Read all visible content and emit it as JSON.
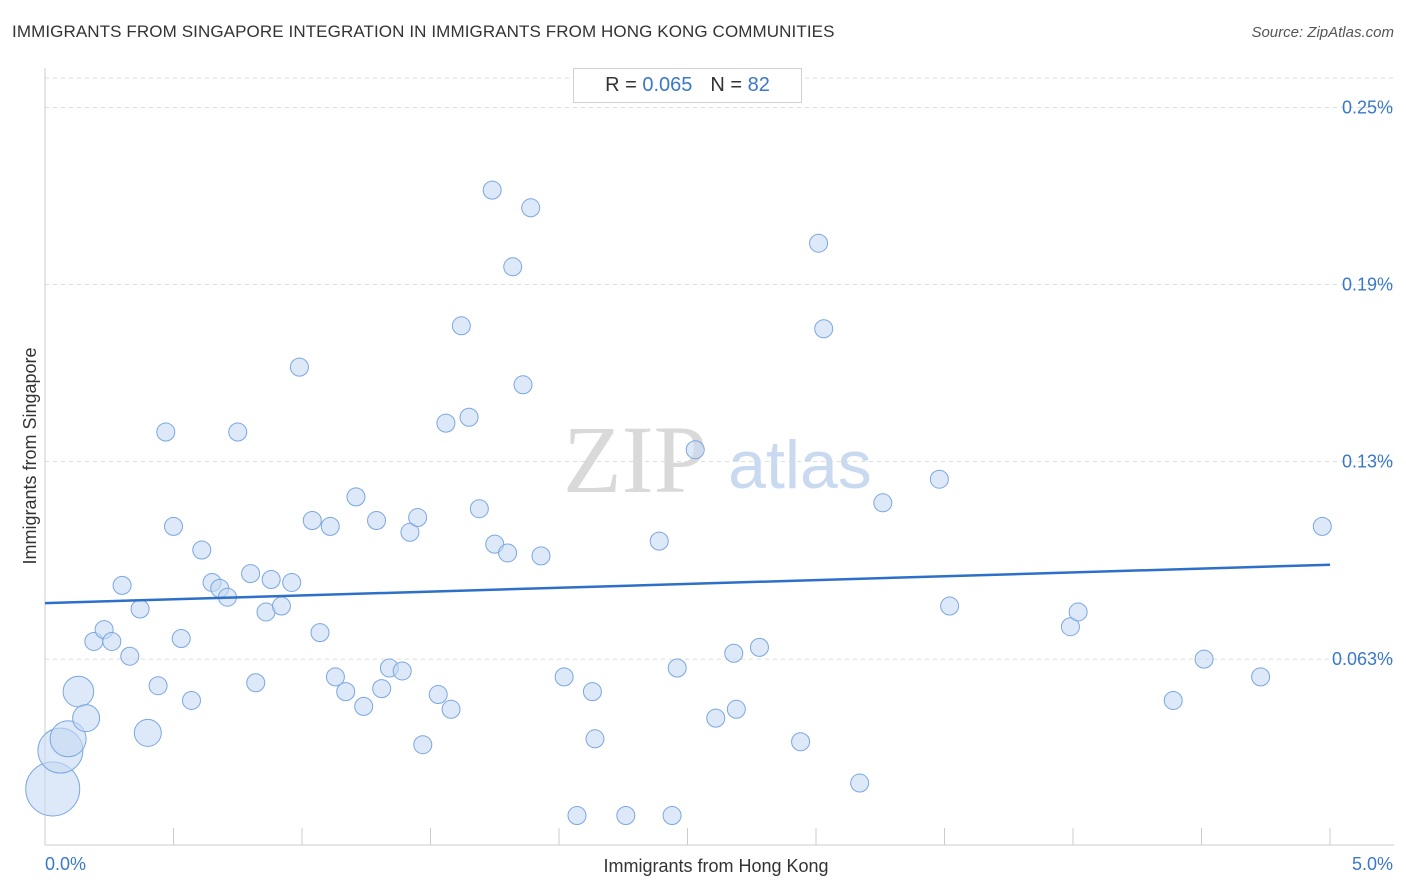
{
  "title": "IMMIGRANTS FROM SINGAPORE INTEGRATION IN IMMIGRANTS FROM HONG KONG COMMUNITIES",
  "source": "Source: ZipAtlas.com",
  "stats": {
    "r_label": "R =",
    "r_value": "0.065",
    "n_label": "N =",
    "n_value": "82"
  },
  "watermark": {
    "zip": "ZIP",
    "atlas": "atlas"
  },
  "colors": {
    "point_fill": "#c6daf3",
    "point_stroke": "#7aa7e0",
    "trend": "#2d6fc9",
    "tick_text": "#3a78c9"
  },
  "chart_data": {
    "type": "scatter",
    "title": "IMMIGRANTS FROM SINGAPORE INTEGRATION IN IMMIGRANTS FROM HONG KONG COMMUNITIES",
    "xlabel": "Immigrants from Hong Kong",
    "ylabel": "Immigrants from Singapore",
    "xlim": [
      0,
      5.0
    ],
    "ylim": [
      0,
      0.26
    ],
    "x_tick_labels": [
      {
        "value": 0,
        "label": "0.0%"
      },
      {
        "value": 5.0,
        "label": "5.0%"
      }
    ],
    "y_tick_labels": [
      {
        "value": 0.063,
        "label": "0.063%"
      },
      {
        "value": 0.13,
        "label": "0.13%"
      },
      {
        "value": 0.19,
        "label": "0.19%"
      },
      {
        "value": 0.25,
        "label": "0.25%"
      }
    ],
    "trend_line": {
      "x": [
        0,
        5.0
      ],
      "y": [
        0.082,
        0.095
      ]
    },
    "points": [
      {
        "x": 0.03,
        "y": 0.019,
        "s": 3
      },
      {
        "x": 0.06,
        "y": 0.032,
        "s": 2.5
      },
      {
        "x": 0.09,
        "y": 0.036,
        "s": 2
      },
      {
        "x": 0.13,
        "y": 0.052,
        "s": 1.7
      },
      {
        "x": 0.16,
        "y": 0.043,
        "s": 1.5
      },
      {
        "x": 0.19,
        "y": 0.069,
        "s": 1
      },
      {
        "x": 0.23,
        "y": 0.073,
        "s": 1
      },
      {
        "x": 0.26,
        "y": 0.069,
        "s": 1
      },
      {
        "x": 0.3,
        "y": 0.088,
        "s": 1
      },
      {
        "x": 0.33,
        "y": 0.064,
        "s": 1
      },
      {
        "x": 0.37,
        "y": 0.08,
        "s": 1
      },
      {
        "x": 0.4,
        "y": 0.038,
        "s": 1.5
      },
      {
        "x": 0.44,
        "y": 0.054,
        "s": 1
      },
      {
        "x": 0.47,
        "y": 0.14,
        "s": 1
      },
      {
        "x": 0.5,
        "y": 0.108,
        "s": 1
      },
      {
        "x": 0.53,
        "y": 0.07,
        "s": 1
      },
      {
        "x": 0.57,
        "y": 0.049,
        "s": 1
      },
      {
        "x": 0.61,
        "y": 0.1,
        "s": 1
      },
      {
        "x": 0.65,
        "y": 0.089,
        "s": 1
      },
      {
        "x": 0.68,
        "y": 0.087,
        "s": 1
      },
      {
        "x": 0.71,
        "y": 0.084,
        "s": 1
      },
      {
        "x": 0.75,
        "y": 0.14,
        "s": 1
      },
      {
        "x": 0.8,
        "y": 0.092,
        "s": 1
      },
      {
        "x": 0.82,
        "y": 0.055,
        "s": 1
      },
      {
        "x": 0.86,
        "y": 0.079,
        "s": 1
      },
      {
        "x": 0.88,
        "y": 0.09,
        "s": 1
      },
      {
        "x": 0.92,
        "y": 0.081,
        "s": 1
      },
      {
        "x": 0.96,
        "y": 0.089,
        "s": 1
      },
      {
        "x": 0.99,
        "y": 0.162,
        "s": 1
      },
      {
        "x": 1.04,
        "y": 0.11,
        "s": 1
      },
      {
        "x": 1.07,
        "y": 0.072,
        "s": 1
      },
      {
        "x": 1.11,
        "y": 0.108,
        "s": 1
      },
      {
        "x": 1.13,
        "y": 0.057,
        "s": 1
      },
      {
        "x": 1.17,
        "y": 0.052,
        "s": 1
      },
      {
        "x": 1.21,
        "y": 0.118,
        "s": 1
      },
      {
        "x": 1.24,
        "y": 0.047,
        "s": 1
      },
      {
        "x": 1.29,
        "y": 0.11,
        "s": 1
      },
      {
        "x": 1.31,
        "y": 0.053,
        "s": 1
      },
      {
        "x": 1.34,
        "y": 0.06,
        "s": 1
      },
      {
        "x": 1.39,
        "y": 0.059,
        "s": 1
      },
      {
        "x": 1.42,
        "y": 0.106,
        "s": 1
      },
      {
        "x": 1.45,
        "y": 0.111,
        "s": 1
      },
      {
        "x": 1.47,
        "y": 0.034,
        "s": 1
      },
      {
        "x": 1.53,
        "y": 0.051,
        "s": 1
      },
      {
        "x": 1.56,
        "y": 0.143,
        "s": 1
      },
      {
        "x": 1.58,
        "y": 0.046,
        "s": 1
      },
      {
        "x": 1.62,
        "y": 0.176,
        "s": 1
      },
      {
        "x": 1.65,
        "y": 0.145,
        "s": 1
      },
      {
        "x": 1.69,
        "y": 0.114,
        "s": 1
      },
      {
        "x": 1.74,
        "y": 0.222,
        "s": 1
      },
      {
        "x": 1.75,
        "y": 0.102,
        "s": 1
      },
      {
        "x": 1.8,
        "y": 0.099,
        "s": 1
      },
      {
        "x": 1.82,
        "y": 0.196,
        "s": 1
      },
      {
        "x": 1.86,
        "y": 0.156,
        "s": 1
      },
      {
        "x": 1.89,
        "y": 0.216,
        "s": 1
      },
      {
        "x": 1.93,
        "y": 0.098,
        "s": 1
      },
      {
        "x": 2.02,
        "y": 0.057,
        "s": 1
      },
      {
        "x": 2.07,
        "y": 0.01,
        "s": 1
      },
      {
        "x": 2.13,
        "y": 0.052,
        "s": 1
      },
      {
        "x": 2.14,
        "y": 0.036,
        "s": 1
      },
      {
        "x": 2.26,
        "y": 0.01,
        "s": 1
      },
      {
        "x": 2.39,
        "y": 0.103,
        "s": 1
      },
      {
        "x": 2.44,
        "y": 0.01,
        "s": 1
      },
      {
        "x": 2.46,
        "y": 0.06,
        "s": 1
      },
      {
        "x": 2.53,
        "y": 0.134,
        "s": 1
      },
      {
        "x": 2.61,
        "y": 0.043,
        "s": 1
      },
      {
        "x": 2.68,
        "y": 0.065,
        "s": 1
      },
      {
        "x": 2.69,
        "y": 0.046,
        "s": 1
      },
      {
        "x": 2.78,
        "y": 0.067,
        "s": 1
      },
      {
        "x": 2.94,
        "y": 0.035,
        "s": 1
      },
      {
        "x": 3.01,
        "y": 0.204,
        "s": 1
      },
      {
        "x": 3.03,
        "y": 0.175,
        "s": 1
      },
      {
        "x": 3.17,
        "y": 0.021,
        "s": 1
      },
      {
        "x": 3.26,
        "y": 0.116,
        "s": 1
      },
      {
        "x": 3.48,
        "y": 0.124,
        "s": 1
      },
      {
        "x": 3.52,
        "y": 0.081,
        "s": 1
      },
      {
        "x": 3.99,
        "y": 0.074,
        "s": 1
      },
      {
        "x": 4.02,
        "y": 0.079,
        "s": 1
      },
      {
        "x": 4.39,
        "y": 0.049,
        "s": 1
      },
      {
        "x": 4.51,
        "y": 0.063,
        "s": 1
      },
      {
        "x": 4.73,
        "y": 0.057,
        "s": 1
      },
      {
        "x": 4.97,
        "y": 0.108,
        "s": 1
      }
    ]
  }
}
